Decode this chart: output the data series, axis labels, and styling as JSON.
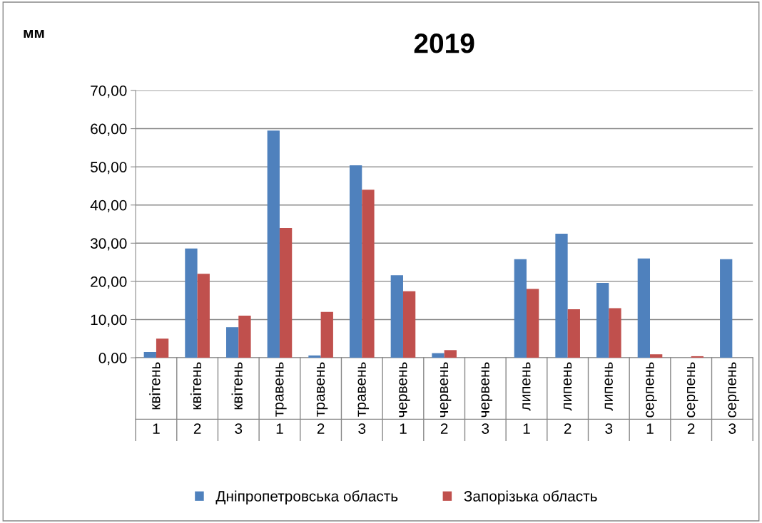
{
  "chart_data": {
    "type": "bar",
    "title": "2019",
    "ylabel": "мм",
    "categories": [
      [
        "квітень",
        "1"
      ],
      [
        "квітень",
        "2"
      ],
      [
        "квітень",
        "3"
      ],
      [
        "травень",
        "1"
      ],
      [
        "травень",
        "2"
      ],
      [
        "травень",
        "3"
      ],
      [
        "червень",
        "1"
      ],
      [
        "червень",
        "2"
      ],
      [
        "червень",
        "3"
      ],
      [
        "липень",
        "1"
      ],
      [
        "липень",
        "2"
      ],
      [
        "липень",
        "3"
      ],
      [
        "серпень",
        "1"
      ],
      [
        "серпень",
        "2"
      ],
      [
        "серпень",
        "3"
      ]
    ],
    "series": [
      {
        "name": "Дніпропетровська область",
        "color": "#4f81bd",
        "values": [
          1.5,
          28.6,
          8.0,
          59.5,
          0.6,
          50.4,
          21.6,
          1.2,
          0,
          25.8,
          32.5,
          19.6,
          26.0,
          0,
          25.8
        ]
      },
      {
        "name": "Запорізька область",
        "color": "#c0504d",
        "values": [
          5.0,
          22.0,
          11.0,
          34.0,
          12.0,
          44.0,
          17.4,
          2.0,
          0,
          18.0,
          12.7,
          13.0,
          0.9,
          0.4,
          0
        ]
      }
    ],
    "ylim": [
      0,
      70
    ],
    "yticks": [
      {
        "value": 0,
        "label": "0,00"
      },
      {
        "value": 10,
        "label": "10,00"
      },
      {
        "value": 20,
        "label": "20,00"
      },
      {
        "value": 30,
        "label": "30,00"
      },
      {
        "value": 40,
        "label": "40,00"
      },
      {
        "value": 50,
        "label": "50,00"
      },
      {
        "value": 60,
        "label": "60,00"
      },
      {
        "value": 70,
        "label": "70,00"
      }
    ],
    "grid": "y",
    "legend": "bottom"
  }
}
